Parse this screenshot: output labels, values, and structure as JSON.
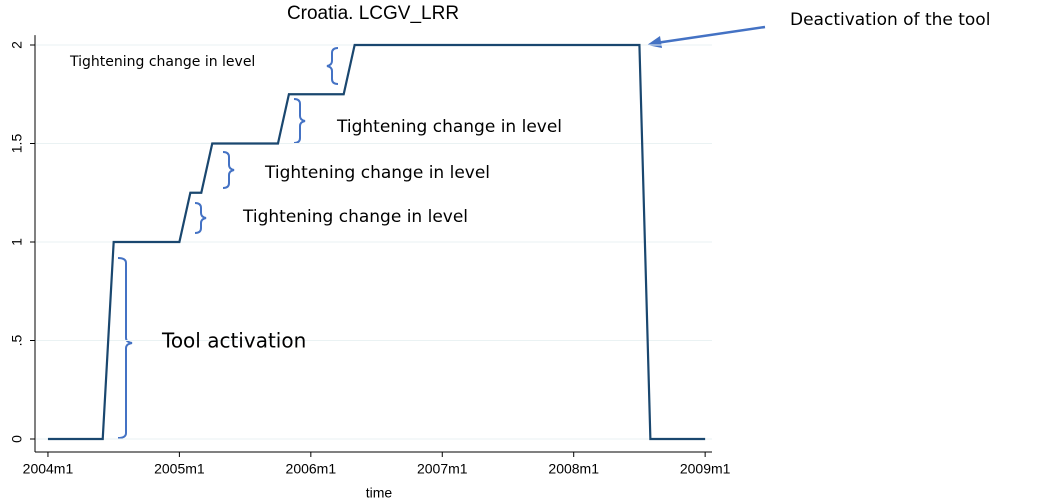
{
  "chart_data": {
    "type": "line",
    "title": "Croatia. LCGV_LRR",
    "x_label": "time",
    "x": [
      528,
      533,
      534,
      540,
      541,
      542,
      543,
      549,
      550,
      555,
      556,
      582,
      583,
      588
    ],
    "series": [
      {
        "color": "#1a476f",
        "values": [
          0,
          0,
          1,
          1,
          1.25,
          1.25,
          1.5,
          1.5,
          1.75,
          1.75,
          2,
          2,
          0,
          0
        ]
      }
    ],
    "xlim": [
      527,
      591
    ],
    "xticks": [
      {
        "value": 528,
        "label": "2004m1"
      },
      {
        "value": 540,
        "label": "2005m1"
      },
      {
        "value": 552,
        "label": "2006m1"
      },
      {
        "value": 564,
        "label": "2007m1"
      },
      {
        "value": 576,
        "label": "2008m1"
      },
      {
        "value": 588,
        "label": "2009m1"
      }
    ],
    "ylim": [
      -0.05,
      2.05
    ],
    "yticks": [
      0,
      {
        "value": 0.5,
        "label": ".5"
      },
      1,
      1.5,
      2
    ],
    "grid": true,
    "annotations": [
      {
        "text": "Tightening change in level"
      },
      {
        "text": "Tightening change in level"
      },
      {
        "text": "Tightening change in level"
      },
      {
        "text": "Tightening change in level"
      },
      {
        "text": "Tool activation"
      },
      {
        "text": "Deactivation of the tool"
      }
    ]
  }
}
